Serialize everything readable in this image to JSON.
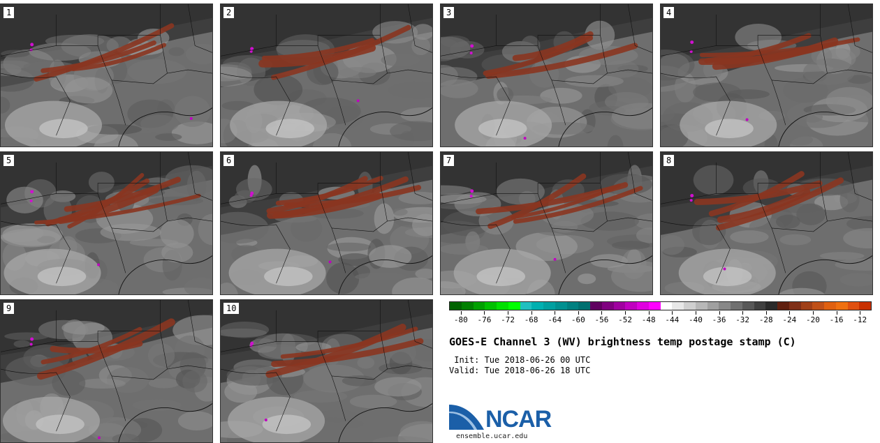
{
  "panels": [
    {
      "label": "1"
    },
    {
      "label": "2"
    },
    {
      "label": "3"
    },
    {
      "label": "4"
    },
    {
      "label": "5"
    },
    {
      "label": "6"
    },
    {
      "label": "7"
    },
    {
      "label": "8"
    },
    {
      "label": "9"
    },
    {
      "label": "10"
    }
  ],
  "colorbar": {
    "colors": [
      "#006400",
      "#008000",
      "#00a000",
      "#00c000",
      "#00e000",
      "#00ff00",
      "#20c0c0",
      "#00b0b0",
      "#00a0a0",
      "#009090",
      "#008080",
      "#007070",
      "#600060",
      "#800080",
      "#a000a0",
      "#c000c0",
      "#e000e0",
      "#ff00ff",
      "#ffffff",
      "#e8e8e8",
      "#d0d0d0",
      "#b8b8b8",
      "#a0a0a0",
      "#888888",
      "#707070",
      "#585858",
      "#404040",
      "#2a2a2a",
      "#602010",
      "#803018",
      "#a04018",
      "#c05018",
      "#e06010",
      "#f07010",
      "#e05010",
      "#c83000"
    ],
    "ticks": [
      "-80",
      "-76",
      "-72",
      "-68",
      "-64",
      "-60",
      "-56",
      "-52",
      "-48",
      "-44",
      "-40",
      "-36",
      "-32",
      "-28",
      "-24",
      "-20",
      "-16",
      "-12"
    ],
    "tick_values": [
      -80,
      -76,
      -72,
      -68,
      -64,
      -60,
      -56,
      -52,
      -48,
      -44,
      -40,
      -36,
      -32,
      -28,
      -24,
      -20,
      -16,
      -12
    ],
    "range": [
      -82,
      -10
    ]
  },
  "title": "GOES-E Channel 3 (WV) brightness temp postage stamp (C)",
  "init": " Init: Tue 2018-06-26 00 UTC",
  "valid": "Valid: Tue 2018-06-26 18 UTC",
  "logo": {
    "text": "NCAR",
    "url": "ensemble.ucar.edu",
    "color": "#1b5fa8"
  }
}
